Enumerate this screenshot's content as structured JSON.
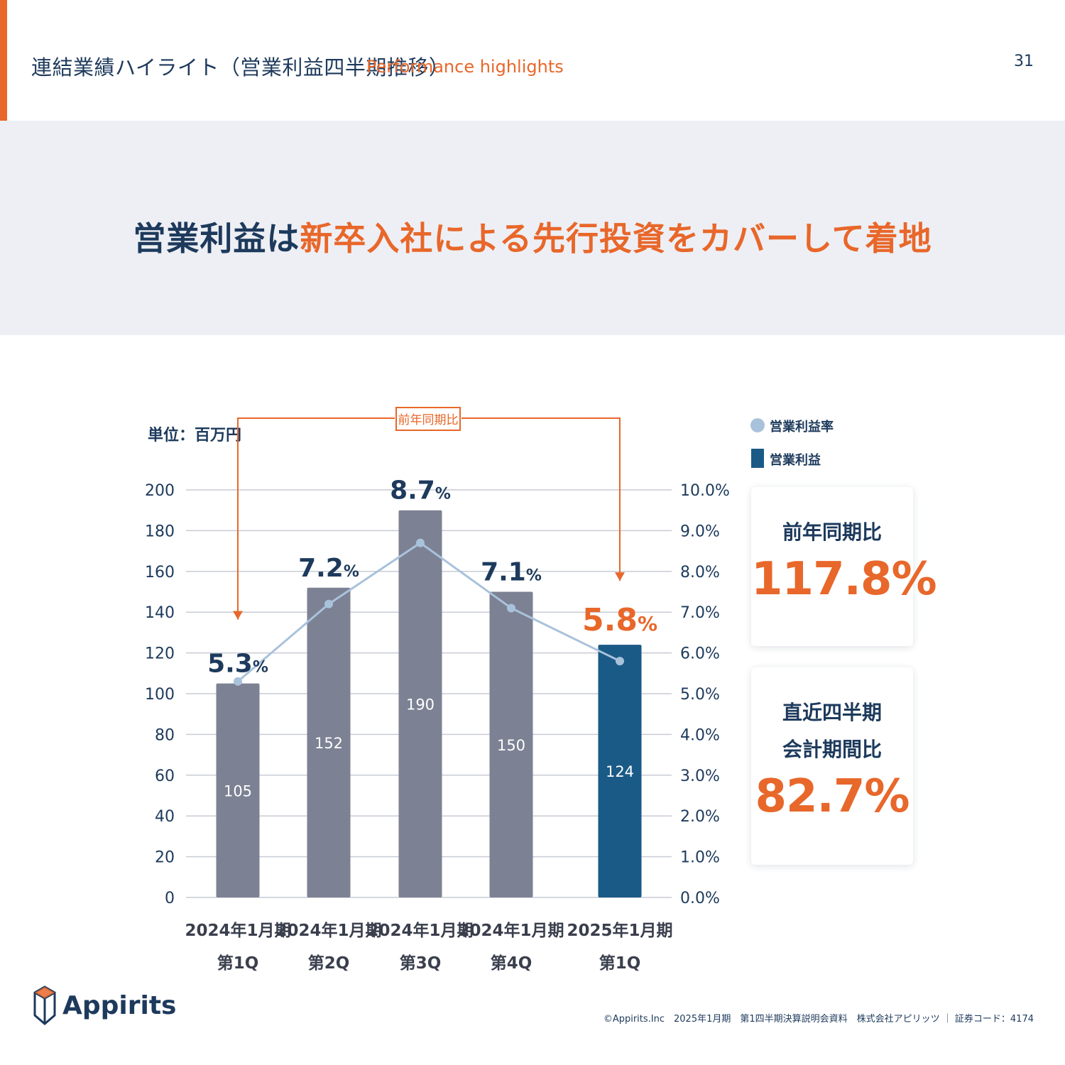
{
  "header": {
    "title": "連結業績ハイライト（営業利益四半期推移）",
    "subtitle": "Performance highlights",
    "page_number": "31"
  },
  "headline": {
    "part1": "営業利益は",
    "part2": "新卒入社による先行投資をカバーして着地"
  },
  "colors": {
    "accent": "#e8672a",
    "navy": "#1d3a5c",
    "bar_gray": "#7c8193",
    "bar_highlight": "#1a5a86",
    "line": "#a9c2dc",
    "band": "#eeeff4"
  },
  "chart_data": {
    "type": "bar",
    "unit_label": "単位：百万円",
    "categories": [
      [
        "2024年1月期",
        "第1Q"
      ],
      [
        "2024年1月期",
        "第2Q"
      ],
      [
        "2024年1月期",
        "第3Q"
      ],
      [
        "2024年1月期",
        "第4Q"
      ],
      [
        "2025年1月期",
        "第1Q"
      ]
    ],
    "series": [
      {
        "name": "営業利益",
        "type": "bar",
        "axis": "left",
        "values": [
          105,
          152,
          190,
          150,
          124
        ],
        "value_labels": [
          "105",
          "152",
          "190",
          "150",
          "124"
        ]
      },
      {
        "name": "営業利益率",
        "type": "line",
        "axis": "right",
        "values": [
          5.3,
          7.2,
          8.7,
          7.1,
          5.8
        ],
        "value_labels": [
          "5.3",
          "7.2",
          "8.7",
          "7.1",
          "5.8"
        ],
        "label_suffix": "%"
      }
    ],
    "highlight_index": 4,
    "ylim_left": [
      0,
      200
    ],
    "yticks_left": [
      "0",
      "20",
      "40",
      "60",
      "80",
      "100",
      "120",
      "140",
      "160",
      "180",
      "200"
    ],
    "ylim_right": [
      0,
      10
    ],
    "yticks_right": [
      "0.0%",
      "1.0%",
      "2.0%",
      "3.0%",
      "4.0%",
      "5.0%",
      "6.0%",
      "7.0%",
      "8.0%",
      "9.0%",
      "10.0%"
    ],
    "grid": true,
    "legend_position": "top-right",
    "annotation": {
      "label": "前年同期比",
      "from_index": 0,
      "to_index": 4
    }
  },
  "cards": [
    {
      "label_lines": [
        "前年同期比"
      ],
      "value": "117.8%"
    },
    {
      "label_lines": [
        "直近四半期",
        "会計期間比"
      ],
      "value": "82.7%"
    }
  ],
  "logo": {
    "text": "Appirits"
  },
  "footer": {
    "text": "©Appirits.Inc　2025年1月期　第1四半期決算説明会資料　株式会社アピリッツ ｜ 証券コード：4174"
  }
}
